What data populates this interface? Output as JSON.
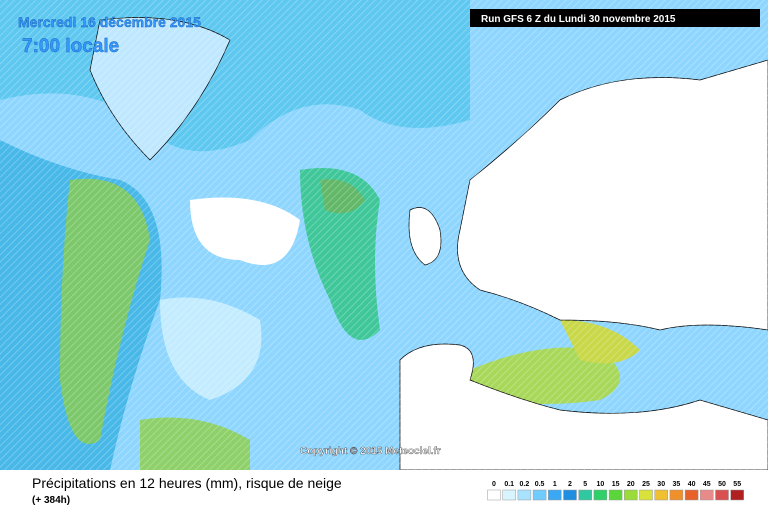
{
  "header": {
    "date": "Mercredi 16 décembre 2015",
    "time": "7:00 locale",
    "run": "Run GFS 6 Z du Lundi 30 novembre 2015"
  },
  "copyright": "Copyright © 2015 Meteociel.fr",
  "footer": {
    "title": "Précipitations en 12 heures (mm), risque de neige",
    "lead": "(+ 384h)"
  },
  "legend": {
    "labels": [
      0,
      0.1,
      0.2,
      0.5,
      1,
      2,
      5,
      10,
      15,
      20,
      25,
      30,
      35,
      40,
      45,
      50,
      55
    ],
    "colors": [
      "#ffffff",
      "#d8f4ff",
      "#a8e2ff",
      "#70cbff",
      "#3aa8f5",
      "#1f8ee0",
      "#30c8a0",
      "#2fcf6a",
      "#5ad63a",
      "#9bdc3a",
      "#d8e23a",
      "#f0c030",
      "#f0902a",
      "#e8602a",
      "#e88a8a",
      "#d85050",
      "#b02020"
    ]
  }
}
